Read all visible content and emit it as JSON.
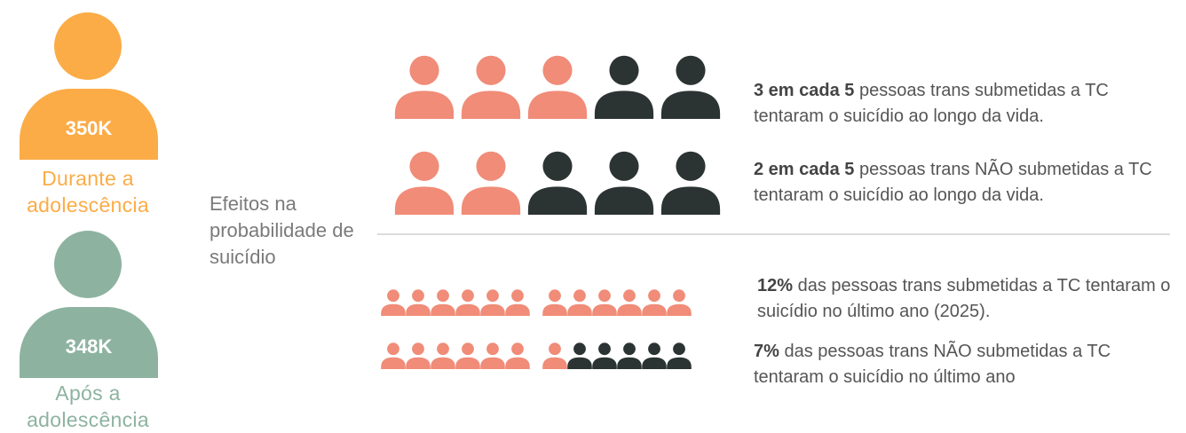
{
  "groups": [
    {
      "count": "350K",
      "label": "Durante a adolescência",
      "color": "#FBAC47"
    },
    {
      "count": "348K",
      "label": "Após a adolescência",
      "color": "#8DB3A0"
    }
  ],
  "effects_label": "Efeitos na probabilidade de suicídio",
  "colors": {
    "highlight": "#F08C78",
    "dark": "#2B3432"
  },
  "stats": [
    {
      "highlight": "3 em cada 5",
      "text": " pessoas trans submetidas a TC tentaram o suicídio ao longo da vida.",
      "filled": 3,
      "total": 5
    },
    {
      "highlight": "2 em cada 5",
      "text": " pessoas trans NÃO submetidas a TC tentaram o suicídio ao longo da vida.",
      "filled": 2,
      "total": 5
    },
    {
      "highlight": "12%",
      "text": " das pessoas trans submetidas a TC tentaram o suicídio no último ano (2025).",
      "filled": 12,
      "total": 12
    },
    {
      "highlight": "7%",
      "text": " das pessoas trans NÃO submetidas a TC tentaram o suicídio no último ano",
      "filled": 7,
      "total": 12
    }
  ]
}
